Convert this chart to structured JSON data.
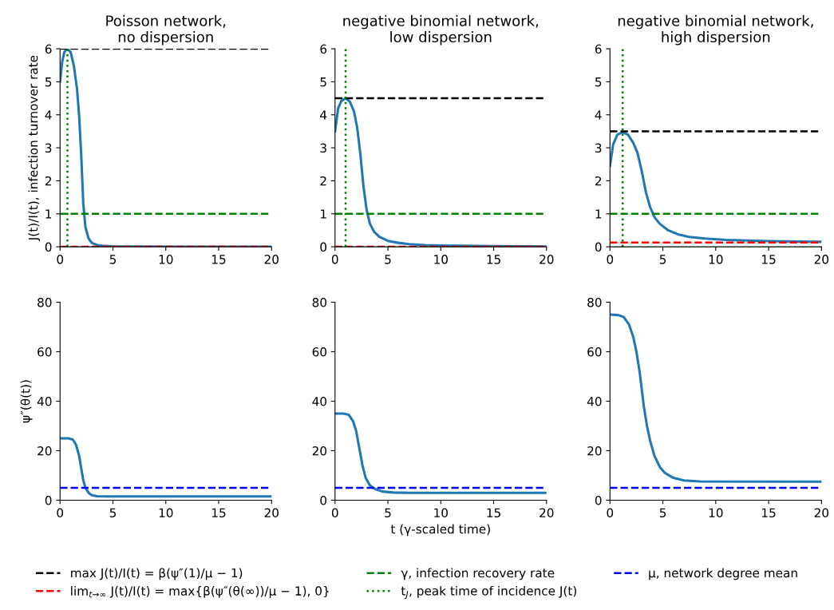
{
  "chart_data": [
    {
      "type": "line",
      "title": "Poisson network,\nno dispersion",
      "ylabel": "J(t)/I(t), infection turnover rate",
      "xlim": [
        0,
        20
      ],
      "xticks": [
        0,
        5,
        10,
        15,
        20
      ],
      "ylim": [
        0,
        6
      ],
      "yticks": [
        0,
        1,
        2,
        3,
        4,
        5,
        6
      ],
      "legend": "bottom",
      "series": [
        {
          "color": "#1f77b4",
          "x": [
            0,
            0.2,
            0.4,
            0.7,
            1.0,
            1.3,
            1.6,
            1.8,
            2.0,
            2.2,
            2.4,
            2.7,
            3,
            3.5,
            4,
            5,
            7,
            10,
            20
          ],
          "values": [
            5.0,
            5.6,
            5.9,
            6.0,
            5.9,
            5.5,
            4.8,
            4.0,
            2.8,
            1.3,
            0.6,
            0.25,
            0.12,
            0.05,
            0.03,
            0.015,
            0.005,
            0.002,
            0.001
          ]
        }
      ],
      "ref_lines": [
        {
          "axis": "y",
          "value": 6,
          "label": "max J(t)/I(t) = β(ψ″(1)/μ − 1)",
          "color": "#000000",
          "line_style": "dashed"
        },
        {
          "axis": "y",
          "value": 0,
          "label": "lim$_{t→∞}$ J(t)/I(t) = max{β(ψ″(θ(∞))/μ − 1), 0}",
          "color": "#ff0000",
          "line_style": "dashed"
        },
        {
          "axis": "y",
          "value": 1,
          "label": "γ, infection recovery rate",
          "color": "#008000",
          "line_style": "dashed"
        },
        {
          "axis": "x",
          "value": 0.7,
          "label": "t$_{J}$, peak time of incidence J(t)",
          "color": "#008000",
          "line_style": "dotted"
        }
      ]
    },
    {
      "type": "line",
      "title": "negative binomial network,\nlow dispersion",
      "xlim": [
        0,
        20
      ],
      "xticks": [
        0,
        5,
        10,
        15,
        20
      ],
      "ylim": [
        0,
        6
      ],
      "yticks": [
        0,
        1,
        2,
        3,
        4,
        5,
        6
      ],
      "series": [
        {
          "color": "#1f77b4",
          "x": [
            0,
            0.3,
            0.6,
            1.0,
            1.4,
            1.8,
            2.1,
            2.4,
            2.7,
            3.0,
            3.3,
            3.7,
            4.2,
            5,
            6,
            7,
            8.5,
            10,
            12,
            15,
            20
          ],
          "values": [
            3.5,
            4.2,
            4.42,
            4.5,
            4.4,
            4.1,
            3.6,
            2.8,
            1.8,
            1.1,
            0.7,
            0.45,
            0.3,
            0.18,
            0.12,
            0.08,
            0.05,
            0.04,
            0.03,
            0.02,
            0.01
          ]
        }
      ],
      "ref_lines": [
        {
          "axis": "y",
          "value": 4.5,
          "color": "#000000",
          "line_style": "dashed"
        },
        {
          "axis": "y",
          "value": 0,
          "color": "#ff0000",
          "line_style": "dashed"
        },
        {
          "axis": "y",
          "value": 1,
          "color": "#008000",
          "line_style": "dashed"
        },
        {
          "axis": "x",
          "value": 1.0,
          "color": "#008000",
          "line_style": "dotted"
        }
      ]
    },
    {
      "type": "line",
      "title": "negative binomial network,\nhigh dispersion",
      "xlim": [
        0,
        20
      ],
      "xticks": [
        0,
        5,
        10,
        15,
        20
      ],
      "ylim": [
        0,
        6
      ],
      "yticks": [
        0,
        1,
        2,
        3,
        4,
        5,
        6
      ],
      "series": [
        {
          "color": "#1f77b4",
          "x": [
            0,
            0.3,
            0.7,
            1.2,
            1.7,
            2.2,
            2.6,
            3.0,
            3.4,
            3.8,
            4.2,
            4.7,
            5.5,
            6.5,
            7.5,
            9,
            11,
            13,
            15,
            20
          ],
          "values": [
            2.45,
            3.1,
            3.4,
            3.47,
            3.4,
            3.15,
            2.85,
            2.3,
            1.65,
            1.2,
            0.9,
            0.7,
            0.5,
            0.37,
            0.3,
            0.25,
            0.21,
            0.19,
            0.17,
            0.15
          ]
        }
      ],
      "ref_lines": [
        {
          "axis": "y",
          "value": 3.5,
          "color": "#000000",
          "line_style": "dashed"
        },
        {
          "axis": "y",
          "value": 0.13,
          "color": "#ff0000",
          "line_style": "dashed"
        },
        {
          "axis": "y",
          "value": 1,
          "color": "#008000",
          "line_style": "dashed"
        },
        {
          "axis": "x",
          "value": 1.2,
          "color": "#008000",
          "line_style": "dotted"
        }
      ]
    },
    {
      "type": "line",
      "ylabel": "ψ″(θ(t))",
      "xlim": [
        0,
        20
      ],
      "xticks": [
        0,
        5,
        10,
        15,
        20
      ],
      "ylim": [
        0,
        80
      ],
      "yticks": [
        0,
        20,
        40,
        60,
        80
      ],
      "legend": "bottom",
      "series": [
        {
          "color": "#1f77b4",
          "x": [
            0,
            0.8,
            1.2,
            1.5,
            1.8,
            2.0,
            2.2,
            2.4,
            2.7,
            3.0,
            3.5,
            4.5,
            20
          ],
          "values": [
            25,
            25,
            24.5,
            22.5,
            18,
            13,
            8,
            5,
            3,
            2,
            1.6,
            1.5,
            1.5
          ]
        }
      ],
      "ref_lines": [
        {
          "axis": "y",
          "value": 5,
          "label": "μ, network degree mean",
          "color": "#0000ff",
          "line_style": "dashed"
        }
      ]
    },
    {
      "type": "line",
      "xlabel": "t (γ-scaled time)",
      "xlim": [
        0,
        20
      ],
      "xticks": [
        0,
        5,
        10,
        15,
        20
      ],
      "ylim": [
        0,
        80
      ],
      "yticks": [
        0,
        20,
        40,
        60,
        80
      ],
      "series": [
        {
          "color": "#1f77b4",
          "x": [
            0,
            0.8,
            1.3,
            1.7,
            2.0,
            2.3,
            2.6,
            2.9,
            3.3,
            3.8,
            4.5,
            5.5,
            7,
            20
          ],
          "values": [
            35,
            35,
            34.5,
            32,
            28,
            21,
            14,
            9,
            6,
            4.5,
            3.5,
            3.1,
            3.0,
            3.0
          ]
        }
      ],
      "ref_lines": [
        {
          "axis": "y",
          "value": 5,
          "color": "#0000ff",
          "line_style": "dashed"
        }
      ]
    },
    {
      "type": "line",
      "xlim": [
        0,
        20
      ],
      "xticks": [
        0,
        5,
        10,
        15,
        20
      ],
      "ylim": [
        0,
        80
      ],
      "yticks": [
        0,
        20,
        40,
        60,
        80
      ],
      "series": [
        {
          "color": "#1f77b4",
          "x": [
            0,
            0.8,
            1.3,
            1.8,
            2.2,
            2.5,
            2.8,
            3.0,
            3.2,
            3.5,
            3.8,
            4.2,
            4.7,
            5.2,
            6,
            7,
            8.5,
            20
          ],
          "values": [
            75,
            74.8,
            74,
            71,
            66,
            60,
            52,
            45,
            38,
            30,
            24,
            18,
            13.5,
            11,
            9,
            8,
            7.6,
            7.5
          ]
        }
      ],
      "ref_lines": [
        {
          "axis": "y",
          "value": 5,
          "color": "#0000ff",
          "line_style": "dashed"
        }
      ]
    }
  ]
}
